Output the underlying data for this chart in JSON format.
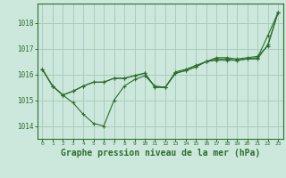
{
  "background_color": "#cce8dc",
  "grid_color": "#aaccbc",
  "line_color": "#2d6e2d",
  "marker_color": "#2d6e2d",
  "title": "Graphe pression niveau de la mer (hPa)",
  "title_fontsize": 7,
  "ylim": [
    1013.5,
    1018.75
  ],
  "xlim": [
    -0.5,
    23.5
  ],
  "yticks": [
    1014,
    1015,
    1016,
    1017,
    1018
  ],
  "xticks": [
    0,
    1,
    2,
    3,
    4,
    5,
    6,
    7,
    8,
    9,
    10,
    11,
    12,
    13,
    14,
    15,
    16,
    17,
    18,
    19,
    20,
    21,
    22,
    23
  ],
  "series": [
    [
      1016.2,
      1015.55,
      1015.2,
      1014.9,
      1014.45,
      1014.1,
      1014.0,
      1015.0,
      1015.55,
      1015.8,
      1015.95,
      1015.55,
      1015.5,
      1016.05,
      1016.15,
      1016.3,
      1016.5,
      1016.55,
      1016.55,
      1016.55,
      1016.6,
      1016.65,
      1017.5,
      1018.4
    ],
    [
      1016.2,
      1015.55,
      1015.2,
      1015.35,
      1015.55,
      1015.7,
      1015.7,
      1015.85,
      1015.85,
      1015.95,
      1016.05,
      1015.5,
      1015.5,
      1016.05,
      1016.15,
      1016.3,
      1016.5,
      1016.6,
      1016.6,
      1016.55,
      1016.6,
      1016.6,
      1017.15,
      1018.4
    ],
    [
      1016.2,
      1015.55,
      1015.2,
      1015.35,
      1015.55,
      1015.7,
      1015.7,
      1015.85,
      1015.85,
      1015.95,
      1016.05,
      1015.5,
      1015.5,
      1016.1,
      1016.2,
      1016.35,
      1016.5,
      1016.65,
      1016.65,
      1016.6,
      1016.65,
      1016.7,
      1017.1,
      1018.4
    ]
  ]
}
